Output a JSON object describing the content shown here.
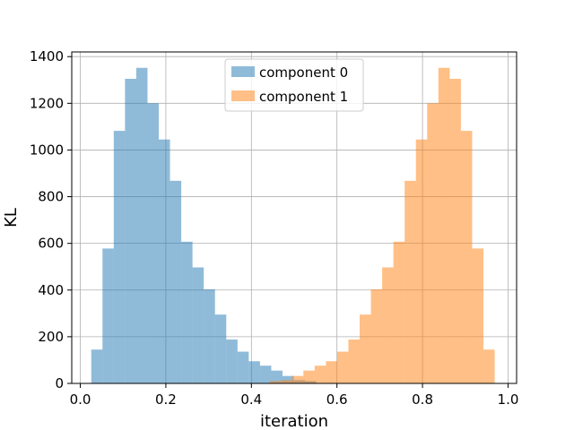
{
  "chart_data": {
    "type": "bar",
    "subtype": "overlapping-histogram",
    "title": "",
    "xlabel": "iteration",
    "ylabel": "KL",
    "xlim": [
      -0.02,
      1.02
    ],
    "ylim": [
      0,
      1420
    ],
    "xticks": [
      0.0,
      0.2,
      0.4,
      0.6,
      0.8,
      1.0
    ],
    "xtick_labels": [
      "0.0",
      "0.2",
      "0.4",
      "0.6",
      "0.8",
      "1.0"
    ],
    "yticks": [
      0,
      200,
      400,
      600,
      800,
      1000,
      1200,
      1400
    ],
    "ytick_labels": [
      "0",
      "200",
      "400",
      "600",
      "800",
      "1000",
      "1200",
      "1400"
    ],
    "grid": true,
    "legend_position": "top-center",
    "series": [
      {
        "name": "component 0",
        "color": "#1f77b4",
        "alpha": 0.5,
        "bin_width": 0.0263,
        "bin_starts": [
          0.0256,
          0.0519,
          0.0782,
          0.1045,
          0.1308,
          0.1571,
          0.1834,
          0.2097,
          0.236,
          0.2623,
          0.2886,
          0.3149,
          0.3412,
          0.3675,
          0.3938,
          0.4201,
          0.4464,
          0.4727,
          0.499,
          0.5253
        ],
        "values": [
          145,
          578,
          1082,
          1305,
          1352,
          1200,
          1045,
          868,
          607,
          497,
          403,
          295,
          188,
          136,
          95,
          76,
          55,
          32,
          14,
          10
        ]
      },
      {
        "name": "component 1",
        "color": "#ff7f0e",
        "alpha": 0.5,
        "bin_width": 0.0263,
        "bin_starts": [
          0.4427,
          0.469,
          0.4953,
          0.5216,
          0.5479,
          0.5742,
          0.6005,
          0.6268,
          0.6531,
          0.6794,
          0.7057,
          0.732,
          0.7583,
          0.7846,
          0.8109,
          0.8372,
          0.8635,
          0.8898,
          0.9161,
          0.9424
        ],
        "values": [
          10,
          14,
          32,
          55,
          76,
          95,
          136,
          188,
          295,
          403,
          497,
          607,
          868,
          1045,
          1200,
          1352,
          1305,
          1082,
          578,
          145
        ]
      }
    ]
  }
}
